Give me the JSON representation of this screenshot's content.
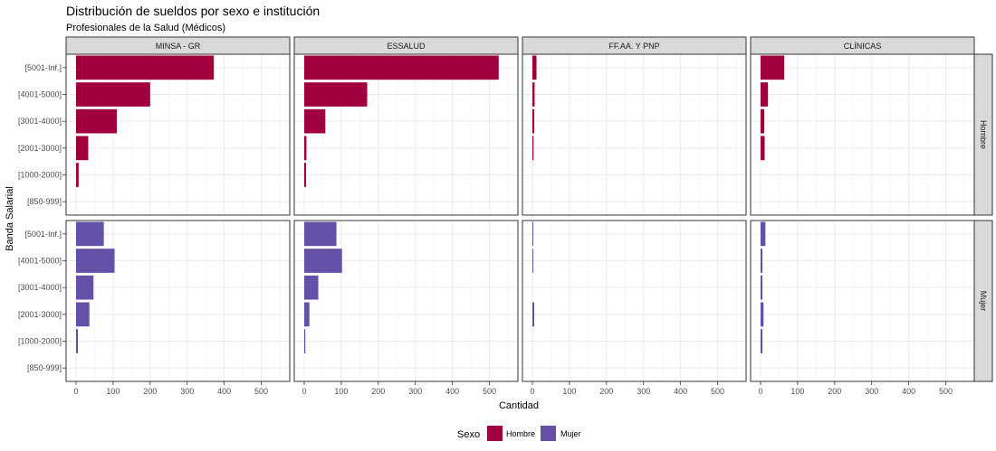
{
  "chart_data": {
    "type": "bar",
    "orientation": "horizontal",
    "title": "Distribución de sueldos por sexo e institución",
    "subtitle": "Profesionales de la Salud (Médicos)",
    "xlabel": "Cantidad",
    "ylabel": "Banda Salarial",
    "xlim": [
      0,
      550
    ],
    "x_ticks": [
      0,
      100,
      200,
      300,
      400,
      500
    ],
    "grid": true,
    "legend_position": "bottom",
    "legend_title": "Sexo",
    "categories": [
      "[5001-Inf.]",
      "[4001-5000]",
      "[3001-4000]",
      "[2001-3000]",
      "[1000-2000]",
      "[850-999]"
    ],
    "columns": [
      "MINSA - GR",
      "ESSALUD",
      "FF.AA. Y PNP",
      "CLÍNICAS"
    ],
    "rows": [
      "Hombre",
      "Mujer"
    ],
    "colors": {
      "Hombre": "#a1003f",
      "Mujer": "#6550a8"
    },
    "series": [
      {
        "name": "Hombre",
        "values": {
          "MINSA - GR": [
            372,
            200,
            110,
            33,
            7,
            0
          ],
          "ESSALUD": [
            525,
            170,
            57,
            6,
            5,
            0
          ],
          "FF.AA. Y PNP": [
            11,
            6,
            5,
            3,
            0,
            0
          ],
          "CLÍNICAS": [
            64,
            20,
            10,
            11,
            0,
            0
          ]
        }
      },
      {
        "name": "Mujer",
        "values": {
          "MINSA - GR": [
            75,
            104,
            47,
            36,
            5,
            0
          ],
          "ESSALUD": [
            87,
            102,
            38,
            14,
            3,
            0
          ],
          "FF.AA. Y PNP": [
            2,
            2,
            0,
            5,
            0,
            0
          ],
          "CLÍNICAS": [
            13,
            5,
            5,
            8,
            5,
            0
          ]
        }
      }
    ]
  }
}
